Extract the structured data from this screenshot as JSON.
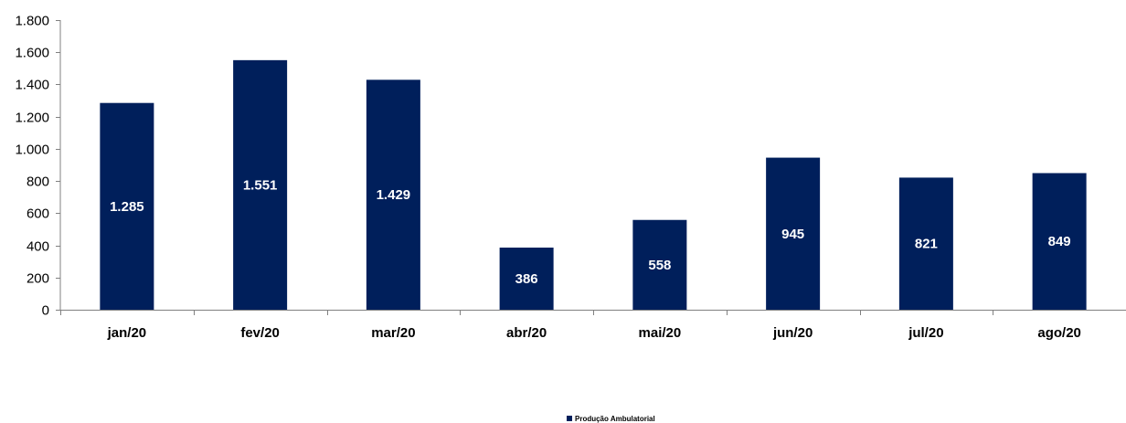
{
  "chart_data": {
    "type": "bar",
    "title": "",
    "xlabel": "",
    "ylabel": "",
    "categories": [
      "jan/20",
      "fev/20",
      "mar/20",
      "abr/20",
      "mai/20",
      "jun/20",
      "jul/20",
      "ago/20"
    ],
    "series": [
      {
        "name": "Produção Ambulatorial",
        "values": [
          1285,
          1551,
          1429,
          386,
          558,
          945,
          821,
          849
        ],
        "data_labels": [
          "1.285",
          "1.551",
          "1.429",
          "386",
          "558",
          "945",
          "821",
          "849"
        ],
        "color": "#001f5b"
      }
    ],
    "ylim": [
      0,
      1800
    ],
    "yticks": [
      0,
      200,
      400,
      600,
      800,
      1000,
      1200,
      1400,
      1600,
      1800
    ],
    "ytick_labels": [
      "0",
      "200",
      "400",
      "600",
      "800",
      "1.000",
      "1.200",
      "1.400",
      "1.600",
      "1.800"
    ],
    "grid": false,
    "legend_position": "bottom-center"
  }
}
